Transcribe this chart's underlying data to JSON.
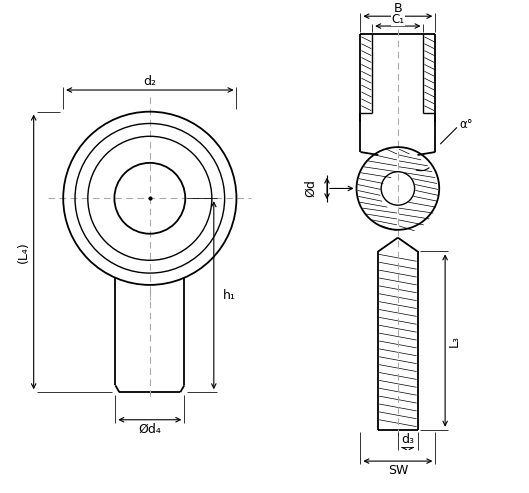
{
  "bg_color": "#ffffff",
  "line_color": "#000000",
  "dashed_color": "#aaaaaa",
  "fig_width": 5.29,
  "fig_height": 4.93,
  "dpi": 100,
  "labels": {
    "d2": "d₂",
    "d4": "Ød₄",
    "L4": "(L₄)",
    "h1": "h₁",
    "B": "B",
    "C1": "C₁",
    "d_phi": "Ød",
    "alpha": "α°",
    "L3": "L₃",
    "d3": "d₃",
    "SW": "SW"
  }
}
